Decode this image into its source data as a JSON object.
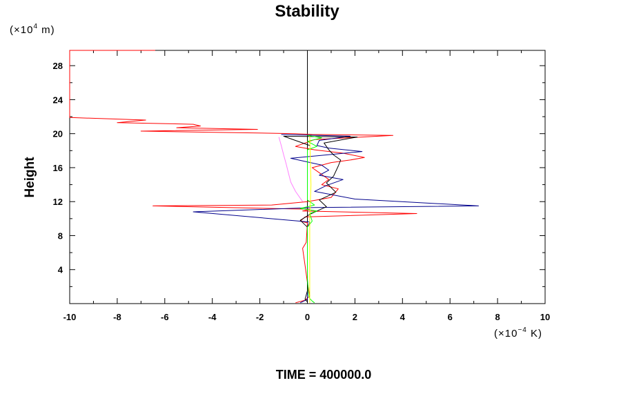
{
  "chart_data": {
    "type": "line",
    "title": "Stability",
    "ylabel": "Height",
    "y_unit_prefix": "(×10",
    "y_unit_exp": "4",
    "y_unit_suffix": " m)",
    "x_unit_prefix": "(×10",
    "x_unit_exp": "−4",
    "x_unit_suffix": " K)",
    "footer": "TIME = 400000.0",
    "xlim": [
      -10,
      10
    ],
    "ylim": [
      0,
      29.8
    ],
    "xticks": [
      -10,
      -8,
      -6,
      -4,
      -2,
      0,
      2,
      4,
      6,
      8,
      10
    ],
    "yticks": [
      4,
      8,
      12,
      16,
      20,
      24,
      28
    ],
    "xminor_step": 1,
    "yminor_step": 2,
    "grid": false,
    "series": [
      {
        "color": "#ff0000",
        "points": [
          [
            -0.5,
            0.1
          ],
          [
            -0.1,
            0.4
          ],
          [
            0.1,
            0.9
          ],
          [
            0,
            2.5
          ],
          [
            -0.1,
            4.5
          ],
          [
            -0.2,
            6.5
          ],
          [
            -0.05,
            7.2
          ],
          [
            0,
            9.5
          ],
          [
            -0.3,
            9.7
          ],
          [
            -0.1,
            10.2
          ],
          [
            4.6,
            10.6
          ],
          [
            -0.2,
            10.9
          ],
          [
            0.1,
            11.1
          ],
          [
            -6.5,
            11.5
          ],
          [
            -1.5,
            11.6
          ],
          [
            0,
            12.0
          ],
          [
            1,
            12.5
          ],
          [
            1.3,
            13.5
          ],
          [
            0.6,
            14.0
          ],
          [
            0.9,
            14.6
          ],
          [
            0.5,
            15.4
          ],
          [
            0.2,
            16.0
          ],
          [
            1.0,
            16.6
          ],
          [
            1.8,
            16.9
          ],
          [
            2.4,
            17.2
          ],
          [
            1.5,
            17.7
          ],
          [
            0.3,
            18.1
          ],
          [
            -0.5,
            18.5
          ],
          [
            0.3,
            19.3
          ],
          [
            3.6,
            19.8
          ],
          [
            0.2,
            19.9
          ],
          [
            -0.5,
            20.0
          ],
          [
            -7,
            20.3
          ],
          [
            -2.1,
            20.5
          ],
          [
            -5.5,
            20.7
          ],
          [
            -4.5,
            20.9
          ],
          [
            -4.8,
            21.1
          ],
          [
            -8,
            21.3
          ],
          [
            -6.8,
            21.6
          ],
          [
            -10,
            21.9
          ],
          [
            -10,
            29.8
          ],
          [
            -6.4,
            29.8
          ]
        ]
      },
      {
        "color": "#00008b",
        "points": [
          [
            -0.3,
            0.1
          ],
          [
            0,
            0.5
          ],
          [
            0,
            2.0
          ],
          [
            0,
            9.0
          ],
          [
            0.1,
            9.6
          ],
          [
            -4.8,
            10.8
          ],
          [
            0.3,
            11.3
          ],
          [
            7.2,
            11.5
          ],
          [
            2.0,
            12.3
          ],
          [
            0.3,
            13.2
          ],
          [
            0.8,
            13.9
          ],
          [
            1.5,
            14.6
          ],
          [
            0.5,
            15.1
          ],
          [
            0.9,
            15.7
          ],
          [
            0.6,
            16.3
          ],
          [
            -0.7,
            17.1
          ],
          [
            2.3,
            17.9
          ],
          [
            0.9,
            18.3
          ],
          [
            0.4,
            18.6
          ],
          [
            0.5,
            19.2
          ],
          [
            1.8,
            19.7
          ],
          [
            -1.1,
            19.9
          ]
        ]
      },
      {
        "color": "#000000",
        "points": [
          [
            0,
            0.2
          ],
          [
            -0.1,
            0.5
          ],
          [
            0,
            1.5
          ],
          [
            0,
            3
          ],
          [
            0,
            6
          ],
          [
            0,
            9
          ],
          [
            -0.3,
            9.8
          ],
          [
            0.1,
            10.5
          ],
          [
            0.8,
            11.4
          ],
          [
            0.5,
            12.2
          ],
          [
            1.2,
            13.1
          ],
          [
            0.8,
            14.2
          ],
          [
            1.1,
            15.0
          ],
          [
            1.3,
            16.2
          ],
          [
            1.4,
            16.9
          ],
          [
            1.1,
            17.5
          ],
          [
            0.9,
            18.1
          ],
          [
            0.7,
            18.9
          ],
          [
            2.1,
            19.6
          ],
          [
            -1.0,
            19.7
          ],
          [
            -0.7,
            19.4
          ],
          [
            -0.3,
            19.0
          ],
          [
            0.1,
            18.6
          ]
        ]
      },
      {
        "color": "#ff80ff",
        "points": [
          [
            -0.2,
            12.0
          ],
          [
            -0.5,
            13.2
          ],
          [
            -0.7,
            14.3
          ],
          [
            -0.8,
            15.4
          ],
          [
            -0.9,
            16.5
          ],
          [
            -1.0,
            17.5
          ],
          [
            -1.1,
            18.6
          ],
          [
            -1.2,
            19.6
          ]
        ]
      },
      {
        "color": "#00ff00",
        "points": [
          [
            0.3,
            0.1
          ],
          [
            0.2,
            0.3
          ],
          [
            0.1,
            0.6
          ],
          [
            0.05,
            1.0
          ],
          [
            0,
            3
          ],
          [
            0,
            6
          ],
          [
            0,
            9
          ],
          [
            0.2,
            9.7
          ],
          [
            0.1,
            10.6
          ],
          [
            0.4,
            10.9
          ],
          [
            -0.3,
            11.2
          ],
          [
            0.3,
            11.6
          ],
          [
            0,
            12.2
          ],
          [
            0,
            15
          ],
          [
            0,
            18.1
          ],
          [
            0.4,
            18.5
          ],
          [
            0,
            19.1
          ],
          [
            0.6,
            19.5
          ],
          [
            0,
            19.8
          ]
        ]
      },
      {
        "color": "#ffff00",
        "points": [
          [
            0.1,
            0.1
          ],
          [
            0.1,
            5
          ],
          [
            0.1,
            10
          ],
          [
            0.15,
            14
          ],
          [
            0.1,
            19.7
          ]
        ]
      }
    ]
  }
}
